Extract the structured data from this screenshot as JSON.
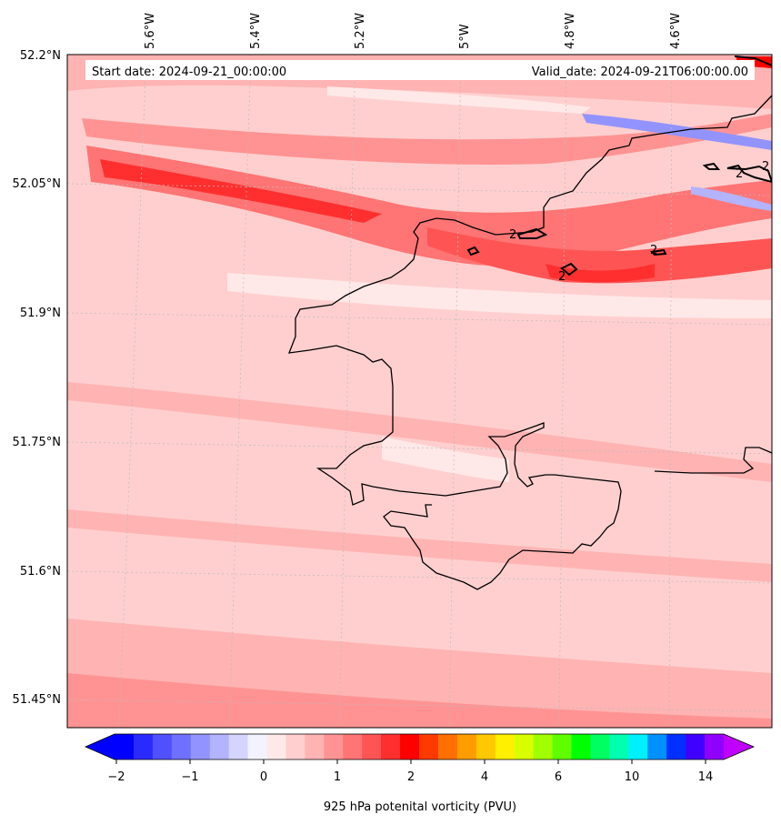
{
  "map": {
    "header_left": "Start date: 2024-09-21_00:00:00",
    "header_right": "Valid_date: 2024-09-21T06:00:00.00",
    "lon_labels": [
      "5.6°W",
      "5.4°W",
      "5.2°W",
      "5°W",
      "4.8°W",
      "4.6°W"
    ],
    "lat_labels": [
      "52.2°N",
      "52.05°N",
      "51.9°N",
      "51.75°N",
      "51.6°N",
      "51.45°N"
    ],
    "contour_labels": [
      "2",
      "2",
      "2",
      "2",
      "2"
    ]
  },
  "colorbar": {
    "label": "925 hPa potenital vorticity (PVU)",
    "tick_labels": [
      "−2",
      "−1",
      "0",
      "1",
      "2",
      "4",
      "6",
      "10",
      "14"
    ],
    "colors": [
      "#0000ff",
      "#2a2aff",
      "#5050ff",
      "#7070ff",
      "#9393ff",
      "#b3b3ff",
      "#d4d4ff",
      "#f3f3ff",
      "#ffe8e8",
      "#ffcfcf",
      "#ffb3b3",
      "#ff9393",
      "#ff7474",
      "#ff5454",
      "#ff2f2f",
      "#ff0000",
      "#ff3a00",
      "#ff7000",
      "#ff9c00",
      "#ffc800",
      "#fff000",
      "#d8ff00",
      "#a0ff00",
      "#60ff00",
      "#00ff00",
      "#00ff60",
      "#00ffb0",
      "#00f0ff",
      "#0090ff",
      "#0030ff",
      "#4000ff",
      "#9000ff"
    ],
    "extend_min_color": "#0000ff",
    "extend_max_color": "#c000ff"
  }
}
